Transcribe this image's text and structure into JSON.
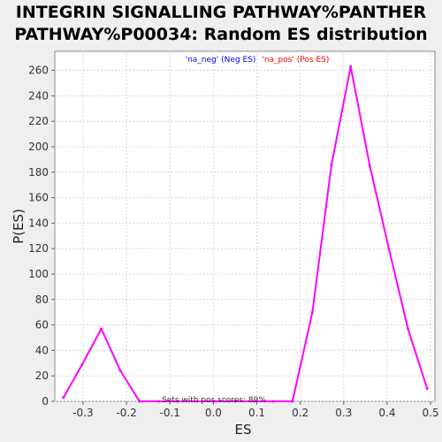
{
  "header": {
    "title_line1": "INTEGRIN SIGNALLING PATHWAY%PANTHER",
    "title_line2": "PATHWAY%P00034: Random ES distribution"
  },
  "chart_data": {
    "type": "line",
    "title": "INTEGRIN SIGNALLING PATHWAY%PANTHER PATHWAY%P00034: Random ES distribution",
    "xlabel": "ES",
    "ylabel": "P(ES)",
    "xlim": [
      -0.365,
      0.51
    ],
    "ylim": [
      0,
      275
    ],
    "x_ticks": [
      "-0.3",
      "-0.2",
      "-0.1",
      "0.0",
      "0.1",
      "0.2",
      "0.3",
      "0.4",
      "0.5"
    ],
    "y_ticks": [
      "0",
      "20",
      "40",
      "60",
      "80",
      "100",
      "120",
      "140",
      "160",
      "180",
      "200",
      "220",
      "240",
      "260"
    ],
    "grid": true,
    "legend_position": "top-center",
    "legend": [
      {
        "label": "'na_neg' (Neg ES)",
        "color": "#0000ff"
      },
      {
        "label": "'na_pos' (Pos ES)",
        "color": "#ff0000"
      }
    ],
    "annotation": "Sets with pos scores: 89%",
    "series": [
      {
        "color": "#ff00ff",
        "x": [
          -0.345,
          -0.302,
          -0.258,
          -0.214,
          -0.17,
          -0.126,
          -0.082,
          -0.038,
          0.006,
          0.05,
          0.094,
          0.138,
          0.182,
          0.228,
          0.272,
          0.316,
          0.36,
          0.404,
          0.448,
          0.492
        ],
        "y": [
          3,
          29,
          57,
          24,
          0,
          0,
          0,
          0,
          0,
          0,
          0,
          0,
          0,
          70,
          186,
          263,
          185,
          120,
          57,
          10
        ]
      }
    ]
  }
}
